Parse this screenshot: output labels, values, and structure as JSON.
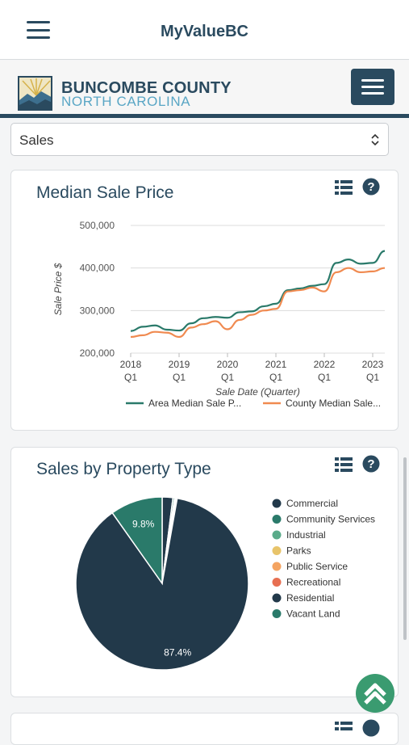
{
  "header": {
    "app_title": "MyValueBC",
    "menu_icon": "hamburger-icon"
  },
  "brand": {
    "name": "BUNCOMBE COUNTY",
    "subtitle": "NORTH CAROLINA",
    "menu_icon": "hamburger-icon"
  },
  "filter": {
    "selected": "Sales"
  },
  "median_card": {
    "title": "Median Sale Price",
    "list_icon": "list-icon",
    "help_icon": "question-circle-icon"
  },
  "property_card": {
    "title": "Sales by Property Type",
    "list_icon": "list-icon",
    "help_icon": "question-circle-icon"
  },
  "chart_data": [
    {
      "type": "line",
      "title": "Median Sale Price",
      "xlabel": "Sale Date (Quarter)",
      "ylabel": "Sale Price $",
      "ylim": [
        200000,
        500000
      ],
      "yticks": [
        "200,000",
        "300,000",
        "400,000",
        "500,000"
      ],
      "xticks": [
        {
          "year": "2018",
          "q": "Q1",
          "x": 2018.0
        },
        {
          "year": "2019",
          "q": "Q1",
          "x": 2019.0
        },
        {
          "year": "2020",
          "q": "Q1",
          "x": 2020.0
        },
        {
          "year": "2021",
          "q": "Q1",
          "x": 2021.0
        },
        {
          "year": "2022",
          "q": "Q1",
          "x": 2022.0
        },
        {
          "year": "2023",
          "q": "Q1",
          "x": 2023.0
        }
      ],
      "xlim": [
        2018.0,
        2023.25
      ],
      "grid": true,
      "legend": "bottom",
      "series": [
        {
          "name": "Area Median Sale P...",
          "color": "#2a7a6a",
          "points": [
            [
              2018.0,
              252000
            ],
            [
              2018.25,
              262000
            ],
            [
              2018.5,
              265000
            ],
            [
              2018.75,
              255000
            ],
            [
              2019.0,
              253000
            ],
            [
              2019.25,
              270000
            ],
            [
              2019.5,
              282000
            ],
            [
              2019.75,
              285000
            ],
            [
              2020.0,
              283000
            ],
            [
              2020.25,
              296000
            ],
            [
              2020.5,
              298000
            ],
            [
              2020.75,
              310000
            ],
            [
              2021.0,
              316000
            ],
            [
              2021.25,
              348000
            ],
            [
              2021.5,
              352000
            ],
            [
              2021.75,
              358000
            ],
            [
              2022.0,
              362000
            ],
            [
              2022.25,
              412000
            ],
            [
              2022.5,
              420000
            ],
            [
              2022.75,
              410000
            ],
            [
              2023.0,
              412000
            ],
            [
              2023.25,
              440000
            ]
          ]
        },
        {
          "name": "County Median Sale...",
          "color": "#f08a50",
          "points": [
            [
              2018.0,
              238000
            ],
            [
              2018.25,
              242000
            ],
            [
              2018.5,
              250000
            ],
            [
              2018.75,
              248000
            ],
            [
              2019.0,
              238000
            ],
            [
              2019.25,
              260000
            ],
            [
              2019.5,
              268000
            ],
            [
              2019.75,
              275000
            ],
            [
              2020.0,
              256000
            ],
            [
              2020.25,
              278000
            ],
            [
              2020.5,
              290000
            ],
            [
              2020.75,
              300000
            ],
            [
              2021.0,
              304000
            ],
            [
              2021.25,
              345000
            ],
            [
              2021.5,
              348000
            ],
            [
              2021.75,
              354000
            ],
            [
              2022.0,
              345000
            ],
            [
              2022.25,
              390000
            ],
            [
              2022.5,
              400000
            ],
            [
              2022.75,
              390000
            ],
            [
              2023.0,
              392000
            ],
            [
              2023.25,
              400000
            ]
          ]
        }
      ]
    },
    {
      "type": "pie",
      "title": "Sales by Property Type",
      "legend": "right",
      "slices": [
        {
          "label": "Commercial",
          "value": 2.0,
          "color": "#22394a",
          "show_label": false
        },
        {
          "label": "Community Services",
          "value": 0.3,
          "color": "#2a7a6a",
          "show_label": false
        },
        {
          "label": "Industrial",
          "value": 0.2,
          "color": "#5aab8a",
          "show_label": false
        },
        {
          "label": "Parks",
          "value": 0.1,
          "color": "#e8c46a",
          "show_label": false
        },
        {
          "label": "Public Service",
          "value": 0.1,
          "color": "#f4a461",
          "show_label": false
        },
        {
          "label": "Recreational",
          "value": 0.1,
          "color": "#e76f51",
          "show_label": false
        },
        {
          "label": "Residential",
          "value": 87.4,
          "color": "#22394a",
          "show_label": true,
          "text": "87.4%"
        },
        {
          "label": "Vacant Land",
          "value": 9.8,
          "color": "#2a7a6a",
          "show_label": true,
          "text": "9.8%"
        }
      ]
    }
  ],
  "fab": {
    "icon": "double-chevron-up-icon"
  }
}
